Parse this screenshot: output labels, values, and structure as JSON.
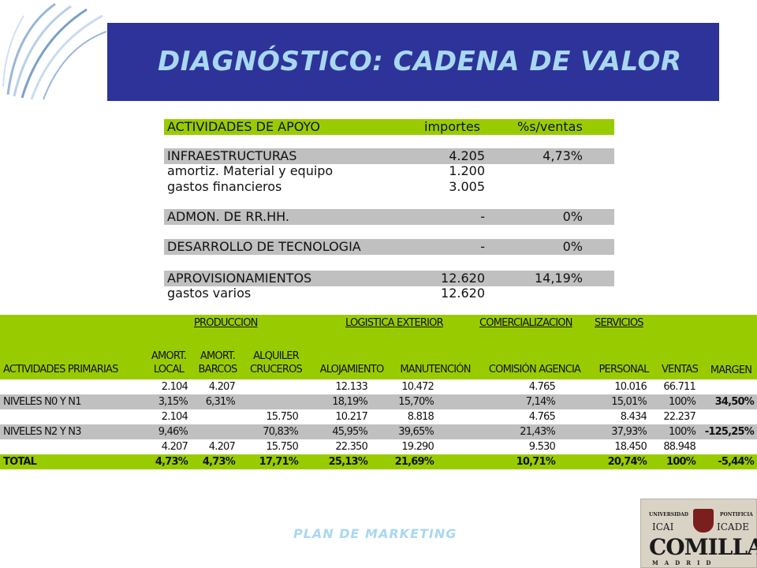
{
  "slide": {
    "title": "DIAGNÓSTICO: CADENA DE VALOR",
    "footer": "PLAN DE MARKETING",
    "banner_color": "#2e3399",
    "title_color": "#a8d8f0"
  },
  "support_table": {
    "headers": {
      "label": "ACTIVIDADES DE APOYO",
      "importes": "importes",
      "pct": "%s/ventas"
    },
    "rows": [
      {
        "label": "INFRAESTRUCTURAS",
        "importes": "4.205",
        "pct": "4,73%"
      },
      {
        "label": "amortiz. Material y equipo",
        "importes": "1.200",
        "pct": ""
      },
      {
        "label": "gastos financieros",
        "importes": "3.005",
        "pct": ""
      },
      {
        "label": "ADMON. DE RR.HH.",
        "importes": "-",
        "pct": "0%"
      },
      {
        "label": "DESARROLLO DE TECNOLOGIA",
        "importes": "-",
        "pct": "0%"
      },
      {
        "label": "APROVISIONAMIENTOS",
        "importes": "12.620",
        "pct": "14,19%"
      },
      {
        "label": "gastos varios",
        "importes": "12.620",
        "pct": ""
      }
    ]
  },
  "primary_table": {
    "groups": {
      "produccion": "PRODUCCION",
      "logistica": "LOGISTICA EXTERIOR",
      "comercializacion": "COMERCIALIZACION",
      "servicios": "SERVICIOS"
    },
    "headers": {
      "actividades": "ACTIVIDADES PRIMARIAS",
      "amort_local_1": "AMORT.",
      "amort_local_2": "LOCAL",
      "amort_barcos_1": "AMORT.",
      "amort_barcos_2": "BARCOS",
      "alquiler_1": "ALQUILER",
      "alquiler_2": "CRUCEROS",
      "alojamiento": "ALOJAMIENTO",
      "manutencion": "MANUTENCIÓN",
      "comision": "COMISIÓN AGENCIA",
      "personal": "PERSONAL",
      "ventas": "VENTAS",
      "margen": "MARGEN"
    },
    "rows": [
      {
        "label": "",
        "local": "2.104",
        "barcos": "4.207",
        "alquiler": "",
        "alojamiento": "12.133",
        "manutencion": "10.472",
        "comision": "4.765",
        "personal": "10.016",
        "ventas": "66.711",
        "margen": ""
      },
      {
        "label": "NIVELES N0 Y N1",
        "local": "3,15%",
        "barcos": "6,31%",
        "alquiler": "",
        "alojamiento": "18,19%",
        "manutencion": "15,70%",
        "comision": "7,14%",
        "personal": "15,01%",
        "ventas": "100%",
        "margen": "34,50%"
      },
      {
        "label": "",
        "local": "2.104",
        "barcos": "",
        "alquiler": "15.750",
        "alojamiento": "10.217",
        "manutencion": "8.818",
        "comision": "4.765",
        "personal": "8.434",
        "ventas": "22.237",
        "margen": ""
      },
      {
        "label": "NIVELES N2 Y N3",
        "local": "9,46%",
        "barcos": "",
        "alquiler": "70,83%",
        "alojamiento": "45,95%",
        "manutencion": "39,65%",
        "comision": "21,43%",
        "personal": "37,93%",
        "ventas": "100%",
        "margen": "-125,25%"
      },
      {
        "label": "",
        "local": "4.207",
        "barcos": "4.207",
        "alquiler": "15.750",
        "alojamiento": "22.350",
        "manutencion": "19.290",
        "comision": "9.530",
        "personal": "18.450",
        "ventas": "88.948",
        "margen": ""
      },
      {
        "label": "TOTAL",
        "local": "4,73%",
        "barcos": "4,73%",
        "alquiler": "17,71%",
        "alojamiento": "25,13%",
        "manutencion": "21,69%",
        "comision": "10,71%",
        "personal": "20,74%",
        "ventas": "100%",
        "margen": "-5,44%"
      }
    ]
  },
  "university_logo": {
    "top_left": "UNIVERSIDAD",
    "top_right": "PONTIFICIA",
    "icai": "ICAI",
    "icade": "ICADE",
    "name": "COMILLAS",
    "city": "MADRID"
  }
}
